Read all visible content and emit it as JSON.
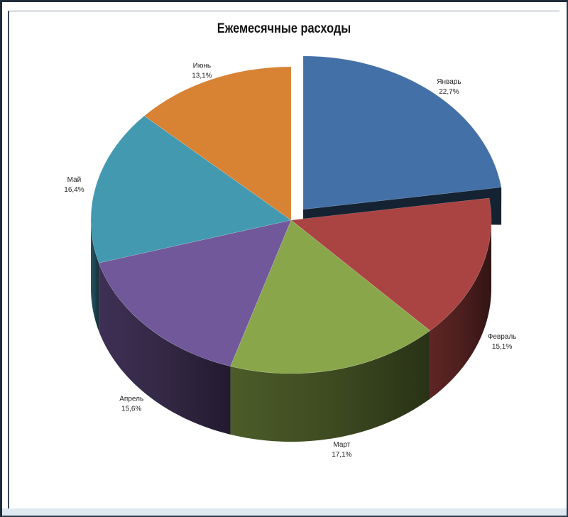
{
  "chart_data": {
    "type": "pie",
    "title": "Ежемесячные расходы",
    "categories": [
      "Январь",
      "Февраль",
      "Март",
      "Апрель",
      "Май",
      "Июнь"
    ],
    "values": [
      22.7,
      15.1,
      17.1,
      15.6,
      16.4,
      13.1
    ],
    "value_labels": [
      "22,7%",
      "15,1%",
      "17,1%",
      "15,6%",
      "16,4%",
      "13,1%"
    ],
    "exploded_slice": "Январь",
    "style": "3d",
    "colors": [
      "#4470a8",
      "#aa4442",
      "#89a74a",
      "#71589a",
      "#4399b0",
      "#d88234"
    ]
  }
}
